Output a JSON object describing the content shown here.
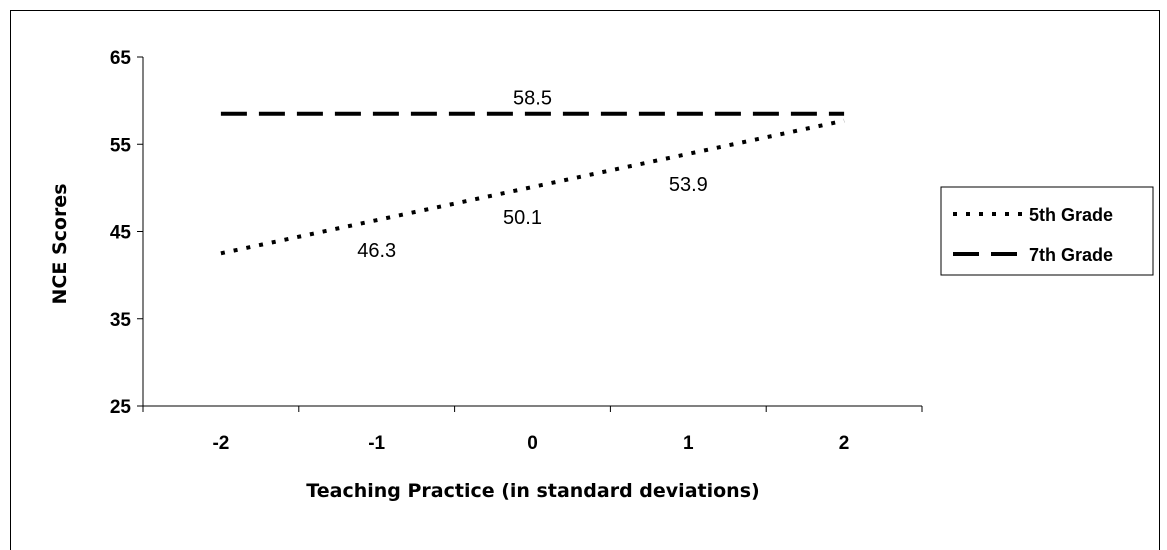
{
  "chart_data": {
    "type": "line",
    "categories": [
      "-2",
      "-1",
      "0",
      "1",
      "2"
    ],
    "x": [
      -2,
      -1,
      0,
      1,
      2
    ],
    "ylim": [
      25,
      65
    ],
    "yticks": [
      25,
      35,
      45,
      55,
      65
    ],
    "xlabel": "Teaching Practice (in standard deviations)",
    "ylabel": "NCE Scores",
    "grid": false,
    "legend_position": "right",
    "series": [
      {
        "name": "5th Grade",
        "style": "dotted",
        "color": "#000000",
        "values": [
          42.5,
          46.3,
          50.1,
          53.9,
          57.7
        ],
        "data_labels": [
          {
            "x": -1,
            "text": "46.3"
          },
          {
            "x": 0,
            "text": "50.1"
          },
          {
            "x": 1,
            "text": "53.9"
          }
        ]
      },
      {
        "name": "7th Grade",
        "style": "dashed",
        "color": "#000000",
        "values": [
          58.5,
          58.5,
          58.5,
          58.5,
          58.5
        ],
        "data_labels": [
          {
            "x": 0,
            "text": "58.5"
          }
        ]
      }
    ]
  }
}
